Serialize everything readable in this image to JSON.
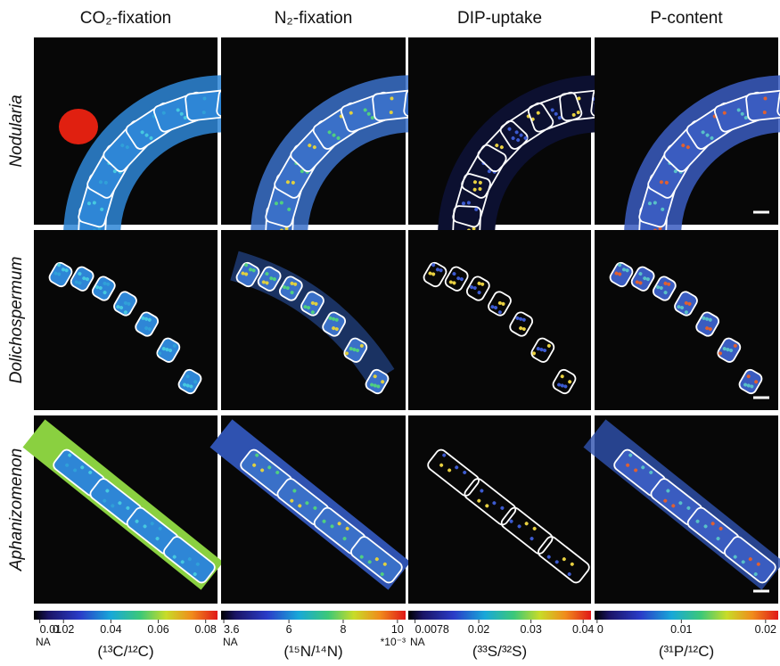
{
  "columns": [
    {
      "title": "CO₂-fixation",
      "colorbar": {
        "lim": [
          0.0075,
          0.085
        ],
        "ticks": [
          0.01,
          0.02,
          0.04,
          0.06,
          0.08
        ],
        "na": "NA",
        "label": "(¹³C/¹²C)"
      }
    },
    {
      "title": "N₂-fixation",
      "colorbar": {
        "lim": [
          3.5,
          10.3
        ],
        "ticks": [
          3.6,
          6,
          8,
          10
        ],
        "na": "NA",
        "label": "(¹⁵N/¹⁴N)",
        "multiplier": "*10⁻³"
      }
    },
    {
      "title": "DIP-uptake",
      "colorbar": {
        "lim": [
          0.0065,
          0.0415
        ],
        "ticks": [
          0.0078,
          0.02,
          0.03,
          0.04
        ],
        "na": "NA",
        "label": "(³³S/³²S)"
      }
    },
    {
      "title": "P-content",
      "colorbar": {
        "lim": [
          -0.0003,
          0.0215
        ],
        "ticks": [
          0,
          0.01,
          0.02
        ],
        "label": "(³¹P/¹²C)"
      }
    }
  ],
  "rows": [
    {
      "label": "Nodularia"
    },
    {
      "label": "Dolichospermum"
    },
    {
      "label": "Aphanizomenon"
    }
  ]
}
